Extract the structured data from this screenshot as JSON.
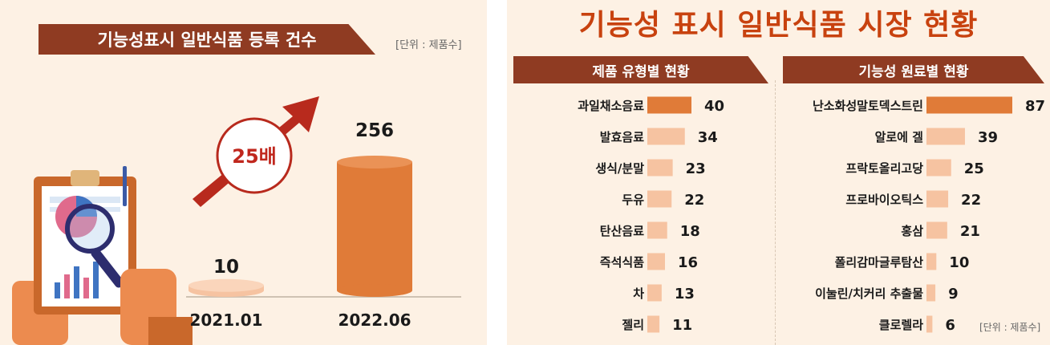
{
  "left": {
    "title": "기능성표시 일반식품 등록 건수",
    "unit": "[단위 : 제품수]",
    "growth_label": "25배"
  },
  "right": {
    "title": "기능성 표시 일반식품 시장 현황",
    "unit": "[단위 : 제품수]"
  },
  "colors": {
    "banner": "#8f3b22",
    "bar_main": "#e07b38",
    "bar_light": "#f6c3a1",
    "accent_red": "#c0271d",
    "background": "#fdf1e4"
  },
  "chart_data": [
    {
      "type": "bar",
      "title": "기능성표시 일반식품 등록 건수",
      "categories": [
        "2021.01",
        "2022.06"
      ],
      "values": [
        10,
        256
      ],
      "ylim": [
        0,
        256
      ]
    },
    {
      "type": "bar",
      "title": "제품 유형별 현황",
      "orientation": "horizontal",
      "categories": [
        "과일채소음료",
        "발효음료",
        "생식/분말",
        "두유",
        "탄산음료",
        "즉석식품",
        "차",
        "젤리"
      ],
      "values": [
        40,
        34,
        23,
        22,
        18,
        16,
        13,
        11
      ]
    },
    {
      "type": "bar",
      "title": "기능성 원료별 현황",
      "orientation": "horizontal",
      "categories": [
        "난소화성말토덱스트린",
        "알로에 겔",
        "프락토올리고당",
        "프로바이오틱스",
        "홍삼",
        "폴리감마글루탐산",
        "이눌린/치커리 추출물",
        "클로렐라"
      ],
      "values": [
        87,
        39,
        25,
        22,
        21,
        10,
        9,
        6
      ]
    }
  ]
}
